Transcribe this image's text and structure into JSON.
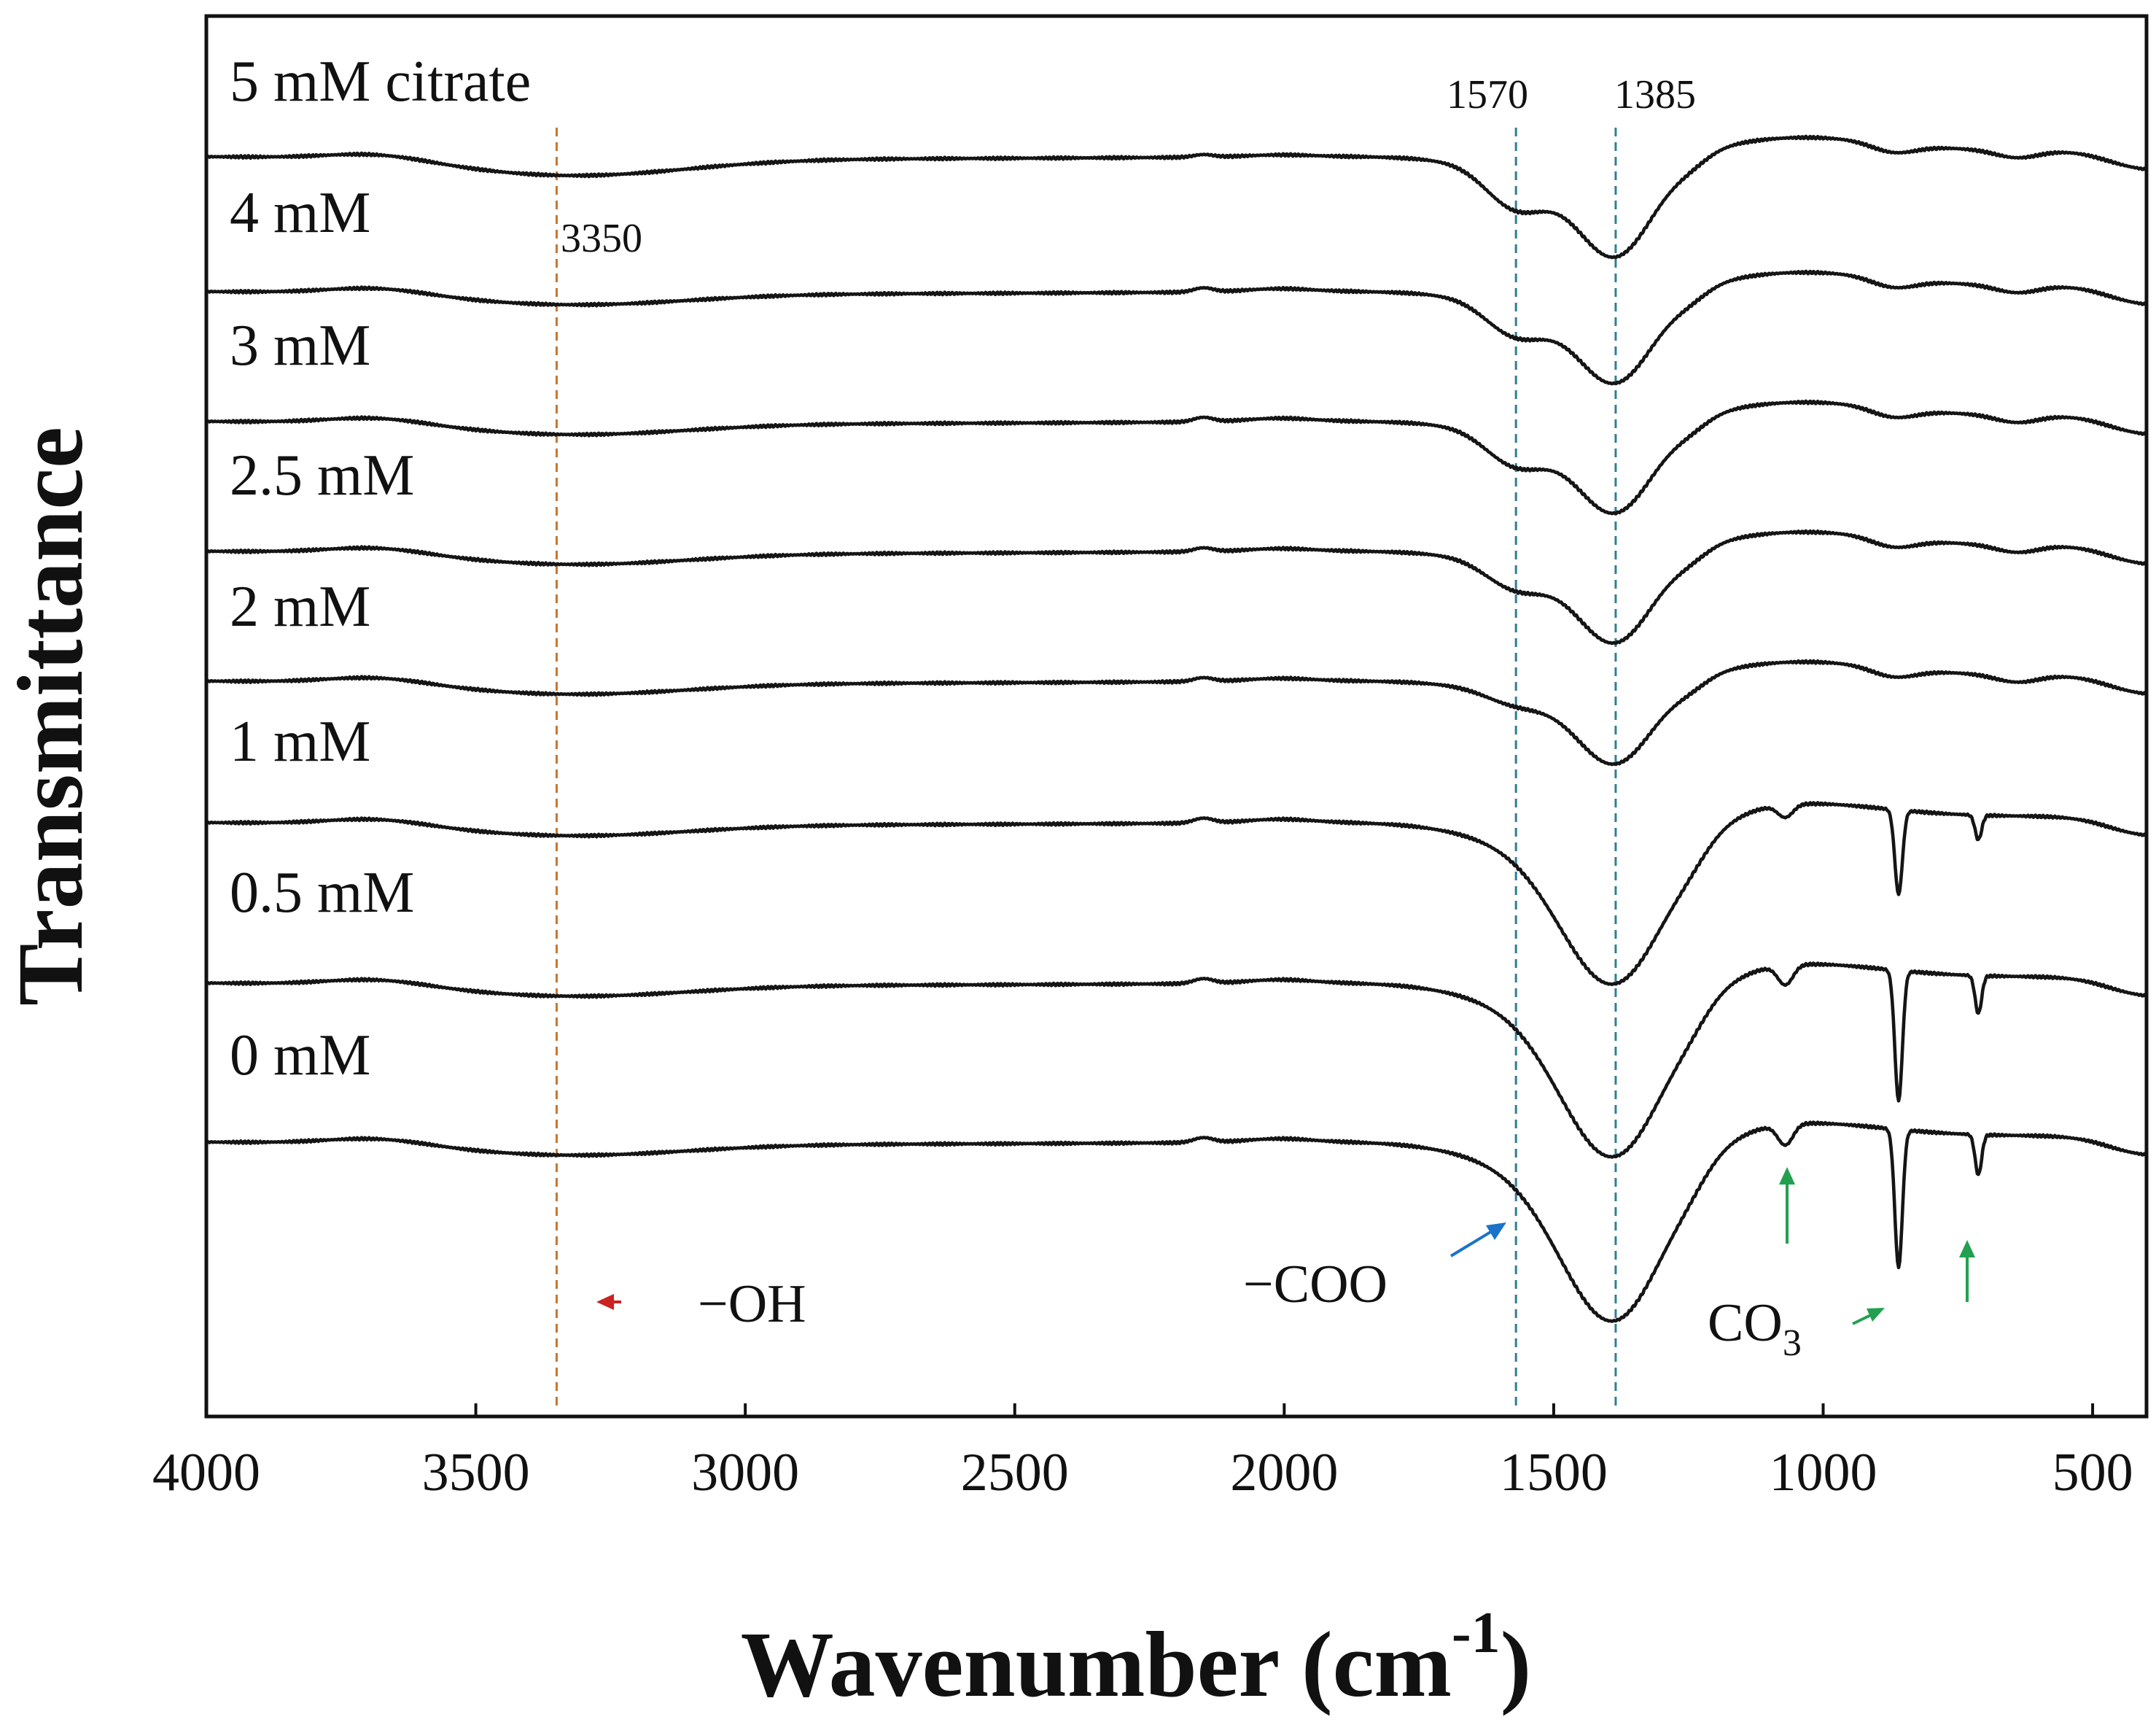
{
  "chart_data": {
    "type": "line",
    "title": "",
    "xlabel": "Wavenumber (cm",
    "xlabel_sup": "-1",
    "xlabel_close": ")",
    "ylabel": "Transmittance",
    "xlim": [
      4000,
      400
    ],
    "x_reversed": true,
    "xticks": [
      4000,
      3500,
      3000,
      2500,
      2000,
      1500,
      1000,
      500
    ],
    "y_ticks_shown": false,
    "grid": false,
    "legend": "none",
    "series": [
      {
        "name": "5 mM citrate",
        "offset": 8,
        "feature": [
          0.15,
          0.08,
          0.3,
          0.6,
          0.0
        ]
      },
      {
        "name": "4 mM",
        "offset": 7,
        "feature": [
          0.1,
          0.13,
          0.25,
          0.55,
          0.0
        ]
      },
      {
        "name": "3 mM",
        "offset": 6,
        "feature": [
          0.1,
          0.14,
          0.25,
          0.55,
          0.0
        ]
      },
      {
        "name": "2.5 mM",
        "offset": 5,
        "feature": [
          0.1,
          0.12,
          0.2,
          0.55,
          0.0
        ]
      },
      {
        "name": "2 mM",
        "offset": 4,
        "feature": [
          0.1,
          0.12,
          0.1,
          0.5,
          0.0
        ]
      },
      {
        "name": "1 mM",
        "offset": 3,
        "feature": [
          0.1,
          0.15,
          0.0,
          0.95,
          0.55
        ]
      },
      {
        "name": "0.5 mM",
        "offset": 2,
        "feature": [
          0.1,
          0.15,
          0.0,
          1.02,
          0.85
        ]
      },
      {
        "name": "0 mM",
        "offset": 1,
        "feature": [
          0.1,
          0.15,
          0.0,
          1.05,
          0.9
        ]
      }
    ],
    "feature_key": [
      "OH dip depth",
      "2000-2150 region bump",
      "1570 dip depth",
      "1385 dip depth",
      "carbonate peak depth"
    ],
    "reference_lines": [
      {
        "x": 3350,
        "color": "#c87533",
        "style": "dashed"
      },
      {
        "x": 1570,
        "color": "#2e7f95",
        "style": "dashed"
      },
      {
        "x": 1385,
        "color": "#2e7f95",
        "style": "dashed"
      }
    ],
    "peak_labels": [
      {
        "text": "3350",
        "x": 3350
      },
      {
        "text": "1570",
        "x": 1570
      },
      {
        "text": "1385",
        "x": 1385
      }
    ],
    "annotations": [
      {
        "text": "−OH",
        "arrow_color": "#cc2222"
      },
      {
        "text": "−COO",
        "arrow_color": "#1a73c8"
      },
      {
        "text": "CO",
        "subscript": "3",
        "arrow_color": "#22a050"
      }
    ]
  }
}
